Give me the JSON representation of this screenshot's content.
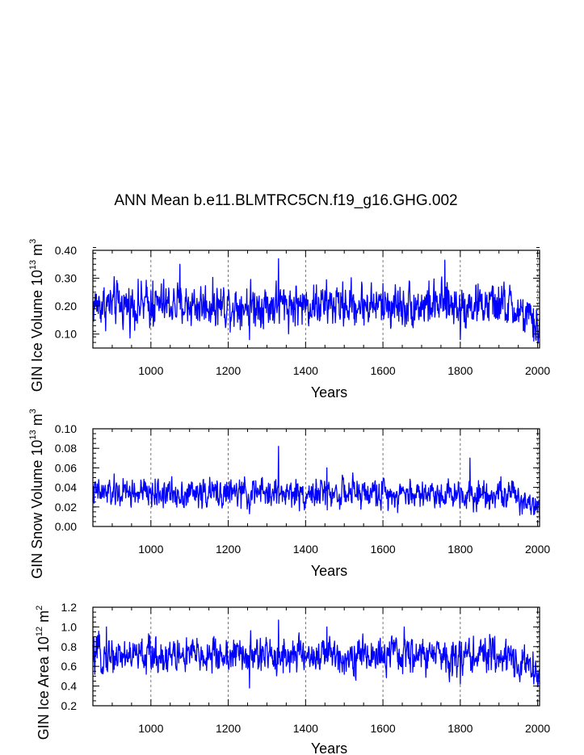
{
  "title": "ANN Mean b.e11.BLMTRC5CN.f19_g16.GHG.002",
  "colors": {
    "series": "#0000ff",
    "axis": "#000000",
    "grid": "#555555"
  },
  "chart_data": [
    {
      "type": "line",
      "name": "ice-volume",
      "ylabel": {
        "prefix": "GIN Ice Volume 10",
        "exp1": "13",
        "unit": " m",
        "exp2": "3"
      },
      "xlabel": "Years",
      "xlim": [
        850,
        2005
      ],
      "ylim": [
        0.05,
        0.4
      ],
      "xticks": [
        1000,
        1200,
        1400,
        1600,
        1800,
        2000
      ],
      "yticks": [
        0.1,
        0.2,
        0.3,
        0.4
      ],
      "yticklabels": [
        "0.10",
        "0.20",
        "0.30",
        "0.40"
      ],
      "yminor": 0.02,
      "x": {
        "start": 850,
        "end": 2005
      },
      "baseline": 0.205,
      "amplitude": 0.045,
      "trend_end": 0.115,
      "peaks": [
        [
          1005,
          0.29
        ],
        [
          1075,
          0.35
        ],
        [
          1330,
          0.37
        ],
        [
          1760,
          0.365
        ],
        [
          1255,
          0.08
        ],
        [
          1800,
          0.08
        ],
        [
          1990,
          0.075
        ]
      ]
    },
    {
      "type": "line",
      "name": "snow-volume",
      "ylabel": {
        "prefix": "GIN Snow Volume 10",
        "exp1": "13",
        "unit": " m",
        "exp2": "3"
      },
      "xlabel": "Years",
      "xlim": [
        850,
        2005
      ],
      "ylim": [
        0.0,
        0.1
      ],
      "xticks": [
        1000,
        1200,
        1400,
        1600,
        1800,
        2000
      ],
      "yticks": [
        0.0,
        0.02,
        0.04,
        0.06,
        0.08,
        0.1
      ],
      "yticklabels": [
        "0.00",
        "0.02",
        "0.04",
        "0.06",
        "0.08",
        "0.10"
      ],
      "yminor": 0.005,
      "x": {
        "start": 850,
        "end": 2005
      },
      "baseline": 0.034,
      "amplitude": 0.0085,
      "trend_end": 0.02,
      "peaks": [
        [
          1330,
          0.082
        ],
        [
          1455,
          0.06
        ],
        [
          1825,
          0.07
        ],
        [
          1255,
          0.013
        ],
        [
          1990,
          0.012
        ]
      ]
    },
    {
      "type": "line",
      "name": "ice-area",
      "ylabel": {
        "prefix": "GIN Ice Area 10",
        "exp1": "12",
        "unit": " m",
        "exp2": "2"
      },
      "xlabel": "Years",
      "xlim": [
        850,
        2005
      ],
      "ylim": [
        0.2,
        1.2
      ],
      "xticks": [
        1000,
        1200,
        1400,
        1600,
        1800,
        2000
      ],
      "yticks": [
        0.2,
        0.4,
        0.6,
        0.8,
        1.0,
        1.2
      ],
      "yticklabels": [
        "0.2",
        "0.4",
        "0.6",
        "0.8",
        "1.0",
        "1.2"
      ],
      "yminor": 0.05,
      "x": {
        "start": 850,
        "end": 2005
      },
      "baseline": 0.71,
      "amplitude": 0.105,
      "trend_end": 0.52,
      "peaks": [
        [
          885,
          1.0
        ],
        [
          1330,
          1.07
        ],
        [
          1455,
          1.0
        ],
        [
          1655,
          1.0
        ],
        [
          1255,
          0.38
        ],
        [
          1800,
          0.42
        ],
        [
          1990,
          0.42
        ]
      ]
    }
  ]
}
